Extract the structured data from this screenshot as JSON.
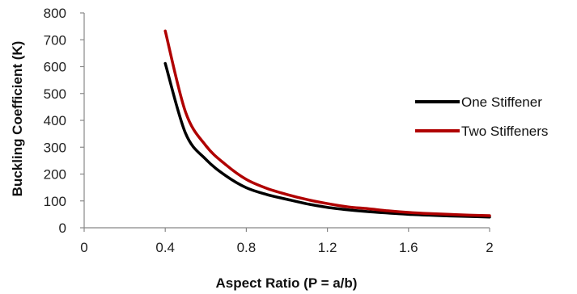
{
  "chart_data": {
    "type": "line",
    "title": "",
    "xlabel": "Aspect Ratio (P = a/b)",
    "ylabel": "Buckling Coefficient (K)",
    "xlim": [
      0,
      2
    ],
    "ylim": [
      0,
      800
    ],
    "xticks": [
      0,
      0.4,
      0.8,
      1.2,
      1.6,
      2
    ],
    "xtick_labels": [
      "0",
      "0.4",
      "0.8",
      "1.2",
      "1.6",
      "2"
    ],
    "yticks": [
      0,
      100,
      200,
      300,
      400,
      500,
      600,
      700,
      800
    ],
    "ytick_labels": [
      "0",
      "100",
      "200",
      "300",
      "400",
      "500",
      "600",
      "700",
      "800"
    ],
    "grid": false,
    "legend_position": "right",
    "series": [
      {
        "name": "One Stiffener",
        "color": "#000000",
        "x": [
          0.4,
          0.5,
          0.6,
          0.7,
          0.8,
          0.9,
          1.0,
          1.1,
          1.2,
          1.3,
          1.4,
          1.5,
          1.6,
          1.7,
          1.8,
          1.9,
          2.0
        ],
        "y": [
          612,
          352,
          255,
          193,
          149,
          124,
          106,
          89,
          76,
          67,
          60,
          55,
          50,
          47,
          44,
          42,
          40
        ]
      },
      {
        "name": "Two Stiffeners",
        "color": "#b00000",
        "x": [
          0.4,
          0.5,
          0.6,
          0.7,
          0.8,
          0.9,
          1.0,
          1.1,
          1.2,
          1.3,
          1.4,
          1.5,
          1.6,
          1.7,
          1.8,
          1.9,
          2.0
        ],
        "y": [
          733,
          431,
          306,
          234,
          180,
          147,
          124,
          105,
          90,
          78,
          71,
          63,
          57,
          53,
          50,
          47,
          45
        ]
      }
    ]
  }
}
